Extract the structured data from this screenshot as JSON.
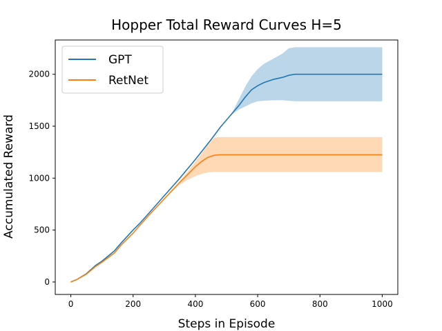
{
  "chart_data": {
    "type": "line",
    "title": "Hopper Total Reward Curves H=5",
    "xlabel": "Steps in Episode",
    "ylabel": "Accumulated Reward",
    "xlim": [
      -50,
      1050
    ],
    "ylim": [
      -120,
      2330
    ],
    "xticks": [
      0,
      200,
      400,
      600,
      800,
      1000
    ],
    "yticks": [
      0,
      500,
      1000,
      1500,
      2000
    ],
    "legend": "top-left",
    "grid": false,
    "series": [
      {
        "name": "GPT",
        "color": "#1f77b4",
        "band_color": "#1f77b4",
        "x": [
          0,
          20,
          50,
          80,
          100,
          140,
          160,
          200,
          220,
          250,
          300,
          350,
          400,
          450,
          480,
          500,
          520,
          540,
          560,
          580,
          600,
          620,
          650,
          680,
          700,
          720,
          750,
          800,
          900,
          1000
        ],
        "y": [
          0,
          25,
          80,
          160,
          200,
          300,
          370,
          500,
          560,
          660,
          830,
          1000,
          1180,
          1370,
          1490,
          1560,
          1630,
          1700,
          1780,
          1850,
          1890,
          1920,
          1950,
          1970,
          1990,
          2000,
          2000,
          2000,
          2000,
          2000
        ],
        "upper": [
          0,
          25,
          80,
          160,
          200,
          300,
          370,
          500,
          560,
          660,
          830,
          1000,
          1180,
          1370,
          1490,
          1560,
          1640,
          1760,
          1880,
          1980,
          2050,
          2100,
          2150,
          2200,
          2250,
          2260,
          2260,
          2260,
          2260,
          2260
        ],
        "lower": [
          0,
          25,
          80,
          160,
          200,
          300,
          370,
          500,
          560,
          660,
          830,
          1000,
          1180,
          1370,
          1490,
          1560,
          1620,
          1660,
          1690,
          1720,
          1740,
          1745,
          1750,
          1750,
          1745,
          1740,
          1740,
          1740,
          1740,
          1740
        ]
      },
      {
        "name": "RetNet",
        "color": "#ff7f0e",
        "band_color": "#ff7f0e",
        "x": [
          0,
          20,
          50,
          80,
          100,
          140,
          160,
          200,
          220,
          250,
          300,
          350,
          380,
          400,
          420,
          440,
          460,
          480,
          500,
          600,
          800,
          1000
        ],
        "y": [
          0,
          25,
          75,
          150,
          190,
          280,
          350,
          470,
          540,
          640,
          800,
          960,
          1050,
          1110,
          1160,
          1200,
          1220,
          1225,
          1225,
          1225,
          1225,
          1225
        ],
        "upper": [
          0,
          25,
          75,
          150,
          190,
          280,
          350,
          470,
          540,
          640,
          800,
          970,
          1080,
          1160,
          1240,
          1320,
          1390,
          1395,
          1395,
          1395,
          1395,
          1395
        ],
        "lower": [
          0,
          25,
          75,
          150,
          190,
          280,
          350,
          470,
          540,
          640,
          800,
          940,
          990,
          1020,
          1040,
          1055,
          1060,
          1060,
          1060,
          1060,
          1060,
          1060
        ]
      }
    ]
  }
}
